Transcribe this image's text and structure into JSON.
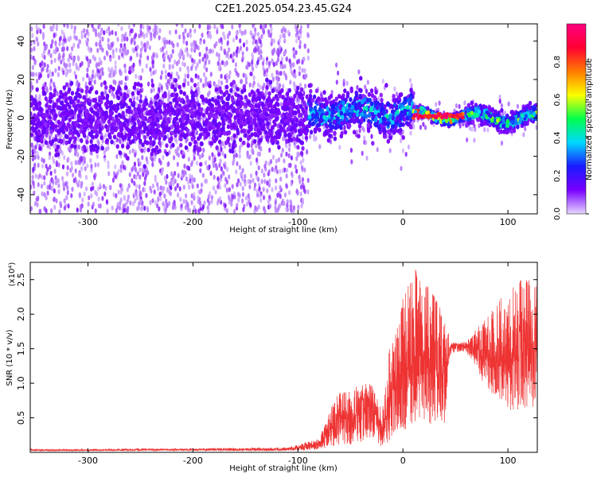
{
  "figure": {
    "title": "C2E1.2025.054.23.45.G24"
  },
  "chart_data": [
    {
      "type": "heatmap",
      "xlabel": "Height of straight line (km)",
      "ylabel": "Frequency (Hz)",
      "xlim": [
        -355,
        128
      ],
      "ylim": [
        -50,
        49
      ],
      "xticks": [
        -300,
        -200,
        -100,
        0,
        100
      ],
      "yticks": [
        -40,
        -20,
        0,
        20,
        40
      ],
      "colorbar": {
        "label": "Normalized spectral amplitude",
        "range": [
          0,
          1.0
        ],
        "ticks": [
          "0.0",
          "0.2",
          "0.4",
          "0.6",
          "0.8"
        ],
        "colormap": [
          "#e6d8ff",
          "#7a00ff",
          "#1a1aff",
          "#00d8ff",
          "#00ff4c",
          "#fbff00",
          "#ff7a00",
          "#ff0033",
          "#ff0080"
        ]
      },
      "description_series": [
        {
          "x_range": [
            -355,
            -90
          ],
          "freq_spread": 49,
          "core_freq_spread": 8,
          "dominant_amplitude": 0.12
        },
        {
          "x_range": [
            -90,
            10
          ],
          "freq_center": 3,
          "freq_spread": 12,
          "dominant_amplitude": 0.45
        },
        {
          "x_range": [
            10,
            60
          ],
          "freq_center": 1,
          "freq_spread": 3,
          "dominant_amplitude": 0.9
        },
        {
          "x_range": [
            60,
            128
          ],
          "freq_center": 0,
          "freq_spread": 5,
          "dominant_amplitude": 0.6
        }
      ]
    },
    {
      "type": "line",
      "xlabel": "Height of straight line (km)",
      "ylabel": "SNR (10 * v/v)",
      "ylabel_exponent": "(x10⁴)",
      "xlim": [
        -355,
        128
      ],
      "ylim": [
        0,
        2.75
      ],
      "xticks": [
        -300,
        -200,
        -100,
        0,
        100
      ],
      "yticks": [
        0.5,
        1.0,
        1.5,
        2.0,
        2.5
      ],
      "color": "#ee3333",
      "series": [
        {
          "x": [
            -355,
            -300,
            -200,
            -110,
            -80,
            -70,
            -60,
            -50,
            -40,
            -30,
            -20,
            -15,
            -10,
            0,
            10,
            20,
            30,
            40,
            45,
            50,
            60,
            70,
            80,
            90,
            100,
            110,
            120,
            128
          ],
          "y": [
            0.03,
            0.03,
            0.04,
            0.04,
            0.12,
            0.3,
            0.55,
            0.45,
            0.6,
            0.7,
            0.2,
            0.6,
            0.9,
            1.1,
            1.4,
            1.3,
            1.2,
            1.1,
            1.5,
            1.55,
            1.52,
            1.5,
            1.45,
            1.3,
            1.35,
            1.4,
            1.5,
            1.45
          ],
          "envelope_top": [
            0.05,
            0.05,
            0.06,
            0.07,
            0.2,
            0.6,
            0.9,
            0.95,
            1.0,
            1.0,
            0.6,
            1.4,
            1.6,
            2.3,
            2.75,
            2.6,
            2.3,
            2.0,
            1.6,
            1.6,
            1.6,
            1.8,
            2.0,
            2.2,
            2.3,
            2.5,
            2.5,
            2.4
          ],
          "envelope_bottom": [
            0.02,
            0.02,
            0.02,
            0.02,
            0.04,
            0.06,
            0.1,
            0.05,
            0.1,
            0.1,
            0.05,
            0.1,
            0.2,
            0.3,
            0.4,
            0.4,
            0.4,
            0.4,
            1.4,
            1.45,
            1.45,
            1.2,
            0.9,
            0.8,
            0.6,
            0.6,
            0.6,
            0.7
          ]
        }
      ]
    }
  ]
}
